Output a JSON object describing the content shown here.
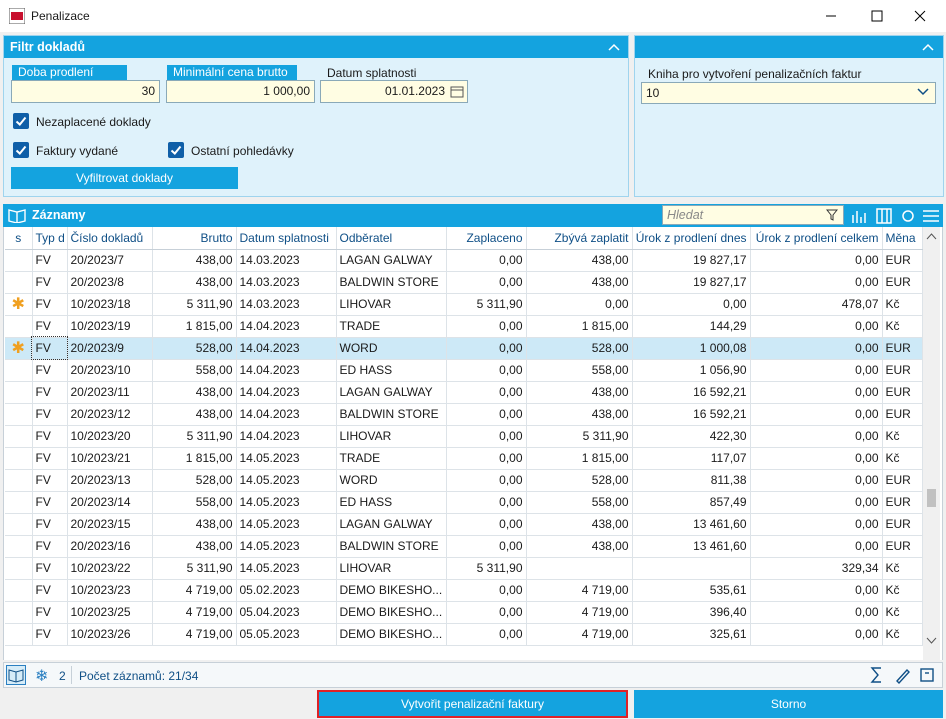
{
  "window": {
    "title": "Penalizace"
  },
  "filter": {
    "title": "Filtr dokladů",
    "fields": [
      {
        "label": "Doba prodlení",
        "value": "30"
      },
      {
        "label": "Minimální cena brutto",
        "value": "1 000,00"
      },
      {
        "label": "Datum splatnosti",
        "value": "01.01.2023"
      }
    ],
    "checkboxes": [
      {
        "label": "Nezaplacené doklady",
        "checked": true
      },
      {
        "label": "Faktury vydané",
        "checked": true
      },
      {
        "label": "Ostatní pohledávky",
        "checked": true
      }
    ],
    "button": "Vyfiltrovat doklady"
  },
  "book": {
    "label": "Kniha pro vytvoření penalizačních faktur",
    "value": "10"
  },
  "records": {
    "title": "Záznamy",
    "search_placeholder": "Hledat",
    "columns": [
      "s",
      "Typ d",
      "Číslo dokladů",
      "Brutto",
      "Datum splatnosti",
      "Odběratel",
      "Zaplaceno",
      "Zbývá zaplatit",
      "Úrok z prodlení dnes",
      "Úrok z prodlení celkem",
      "Měna"
    ],
    "rows": [
      {
        "marked": false,
        "selected": false,
        "cells": [
          "FV",
          "20/2023/7",
          "438,00",
          "14.03.2023",
          "LAGAN GALWAY",
          "0,00",
          "438,00",
          "19 827,17",
          "0,00",
          "EUR"
        ]
      },
      {
        "marked": false,
        "selected": false,
        "cells": [
          "FV",
          "20/2023/8",
          "438,00",
          "14.03.2023",
          "BALDWIN STORE",
          "0,00",
          "438,00",
          "19 827,17",
          "0,00",
          "EUR"
        ]
      },
      {
        "marked": true,
        "selected": false,
        "cells": [
          "FV",
          "10/2023/18",
          "5 311,90",
          "14.03.2023",
          "LIHOVAR",
          "5 311,90",
          "0,00",
          "0,00",
          "478,07",
          "Kč"
        ]
      },
      {
        "marked": false,
        "selected": false,
        "cells": [
          "FV",
          "10/2023/19",
          "1 815,00",
          "14.04.2023",
          "TRADE",
          "0,00",
          "1 815,00",
          "144,29",
          "0,00",
          "Kč"
        ]
      },
      {
        "marked": true,
        "selected": true,
        "cells": [
          "FV",
          "20/2023/9",
          "528,00",
          "14.04.2023",
          "WORD",
          "0,00",
          "528,00",
          "1 000,08",
          "0,00",
          "EUR"
        ]
      },
      {
        "marked": false,
        "selected": false,
        "cells": [
          "FV",
          "20/2023/10",
          "558,00",
          "14.04.2023",
          "ED HASS",
          "0,00",
          "558,00",
          "1 056,90",
          "0,00",
          "EUR"
        ]
      },
      {
        "marked": false,
        "selected": false,
        "cells": [
          "FV",
          "20/2023/11",
          "438,00",
          "14.04.2023",
          "LAGAN GALWAY",
          "0,00",
          "438,00",
          "16 592,21",
          "0,00",
          "EUR"
        ]
      },
      {
        "marked": false,
        "selected": false,
        "cells": [
          "FV",
          "20/2023/12",
          "438,00",
          "14.04.2023",
          "BALDWIN STORE",
          "0,00",
          "438,00",
          "16 592,21",
          "0,00",
          "EUR"
        ]
      },
      {
        "marked": false,
        "selected": false,
        "cells": [
          "FV",
          "10/2023/20",
          "5 311,90",
          "14.04.2023",
          "LIHOVAR",
          "0,00",
          "5 311,90",
          "422,30",
          "0,00",
          "Kč"
        ]
      },
      {
        "marked": false,
        "selected": false,
        "cells": [
          "FV",
          "10/2023/21",
          "1 815,00",
          "14.05.2023",
          "TRADE",
          "0,00",
          "1 815,00",
          "117,07",
          "0,00",
          "Kč"
        ]
      },
      {
        "marked": false,
        "selected": false,
        "cells": [
          "FV",
          "20/2023/13",
          "528,00",
          "14.05.2023",
          "WORD",
          "0,00",
          "528,00",
          "811,38",
          "0,00",
          "EUR"
        ]
      },
      {
        "marked": false,
        "selected": false,
        "cells": [
          "FV",
          "20/2023/14",
          "558,00",
          "14.05.2023",
          "ED HASS",
          "0,00",
          "558,00",
          "857,49",
          "0,00",
          "EUR"
        ]
      },
      {
        "marked": false,
        "selected": false,
        "cells": [
          "FV",
          "20/2023/15",
          "438,00",
          "14.05.2023",
          "LAGAN GALWAY",
          "0,00",
          "438,00",
          "13 461,60",
          "0,00",
          "EUR"
        ]
      },
      {
        "marked": false,
        "selected": false,
        "cells": [
          "FV",
          "20/2023/16",
          "438,00",
          "14.05.2023",
          "BALDWIN STORE",
          "0,00",
          "438,00",
          "13 461,60",
          "0,00",
          "EUR"
        ]
      },
      {
        "marked": false,
        "selected": false,
        "cells": [
          "FV",
          "10/2023/22",
          "5 311,90",
          "14.05.2023",
          "LIHOVAR",
          "5 311,90",
          null,
          null,
          "329,34",
          "Kč"
        ]
      },
      {
        "marked": false,
        "selected": false,
        "cells": [
          "FV",
          "10/2023/23",
          "4 719,00",
          "05.02.2023",
          "DEMO BIKESHO...",
          "0,00",
          "4 719,00",
          "535,61",
          "0,00",
          "Kč"
        ]
      },
      {
        "marked": false,
        "selected": false,
        "cells": [
          "FV",
          "10/2023/25",
          "4 719,00",
          "05.04.2023",
          "DEMO BIKESHO...",
          "0,00",
          "4 719,00",
          "396,40",
          "0,00",
          "Kč"
        ]
      },
      {
        "marked": false,
        "selected": false,
        "cells": [
          "FV",
          "10/2023/26",
          "4 719,00",
          "05.05.2023",
          "DEMO BIKESHO...",
          "0,00",
          "4 719,00",
          "325,61",
          "0,00",
          "Kč"
        ]
      }
    ]
  },
  "footer": {
    "marked_count": 2,
    "record_count": "Počet záznamů: 21/34"
  },
  "buttons": {
    "create": "Vytvořit penalizační faktury",
    "cancel": "Storno"
  }
}
